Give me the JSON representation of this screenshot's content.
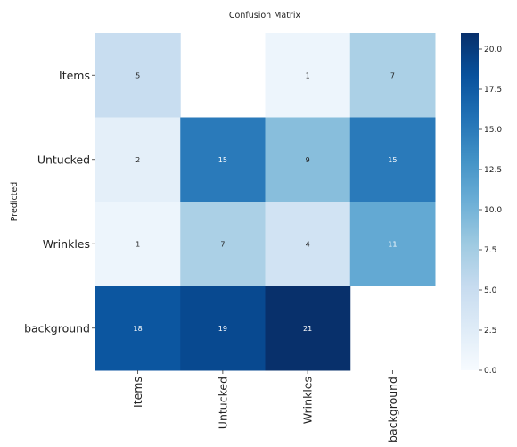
{
  "chart_data": {
    "type": "heatmap",
    "title": "Confusion Matrix",
    "xlabel": "",
    "ylabel": "Predicted",
    "x_categories": [
      "Items",
      "Untucked",
      "Wrinkles",
      "background"
    ],
    "y_categories": [
      "Items",
      "Untucked",
      "Wrinkles",
      "background"
    ],
    "values": [
      [
        5,
        null,
        1,
        7
      ],
      [
        2,
        15,
        9,
        15
      ],
      [
        1,
        7,
        4,
        11
      ],
      [
        18,
        19,
        21,
        null
      ]
    ],
    "colorbar": {
      "min": 0,
      "max": 21,
      "ticks": [
        0.0,
        2.5,
        5.0,
        7.5,
        10.0,
        12.5,
        15.0,
        17.5,
        20.0
      ],
      "tick_labels": [
        "0.0",
        "2.5",
        "5.0",
        "7.5",
        "10.0",
        "12.5",
        "15.0",
        "17.5",
        "20.0"
      ],
      "colormap": "Blues",
      "low_color": "#f7fbff",
      "high_color": "#08306b"
    },
    "grid": false
  }
}
